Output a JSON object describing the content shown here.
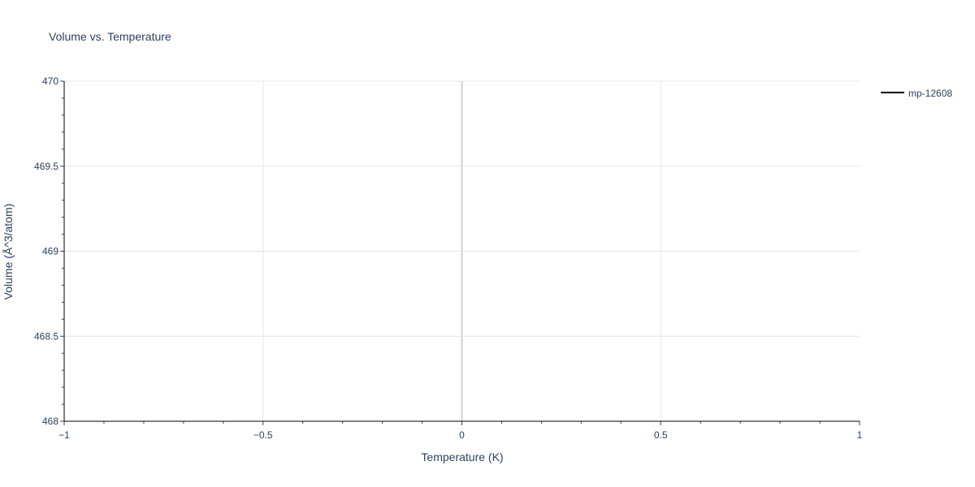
{
  "chart_data": {
    "type": "line",
    "title": "Volume vs. Temperature",
    "xlabel": "Temperature (K)",
    "ylabel": "Volume (Å^3/atom)",
    "xlim": [
      -1,
      1
    ],
    "ylim": [
      468,
      470
    ],
    "x_ticks": [
      -1,
      -0.5,
      0,
      0.5,
      1
    ],
    "x_tick_labels": [
      "−1",
      "−0.5",
      "0",
      "0.5",
      "1"
    ],
    "y_ticks": [
      468,
      468.5,
      469,
      469.5,
      470
    ],
    "y_tick_labels": [
      "468",
      "468.5",
      "469",
      "469.5",
      "470"
    ],
    "grid": true,
    "legend_position": "top-right",
    "series": [
      {
        "name": "mp-12608",
        "color": "#000000",
        "x": [],
        "y": []
      }
    ]
  }
}
